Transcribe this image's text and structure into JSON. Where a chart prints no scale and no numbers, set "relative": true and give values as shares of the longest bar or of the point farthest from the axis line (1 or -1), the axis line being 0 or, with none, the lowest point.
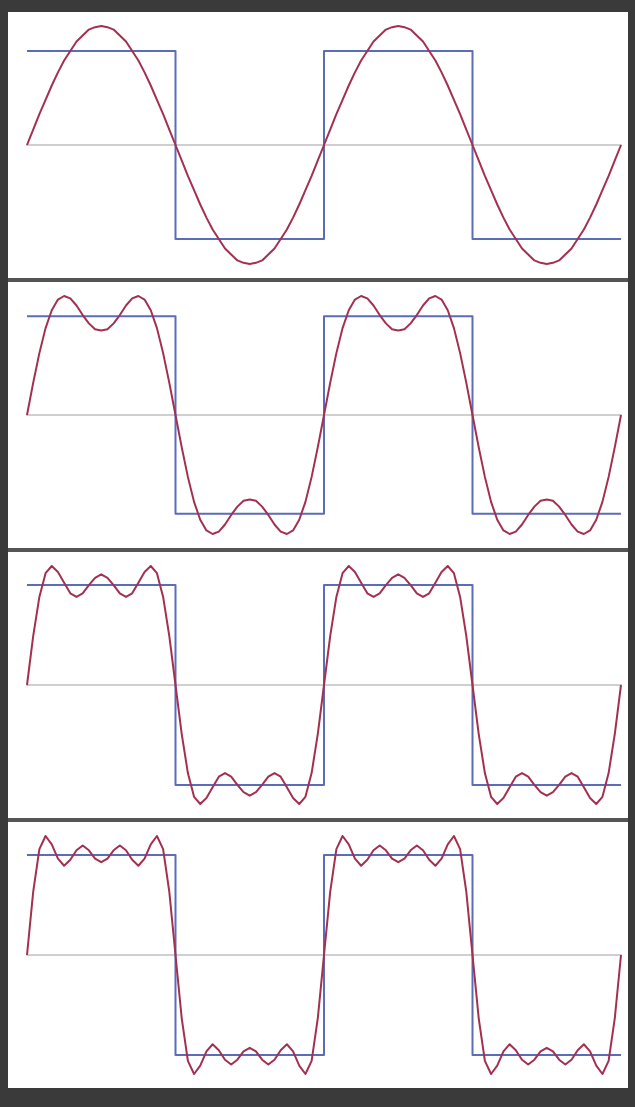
{
  "chart_data": [
    {
      "type": "line",
      "relative": true,
      "categories": [
        null,
        null,
        null,
        null,
        null,
        null,
        null,
        null,
        null,
        null,
        null,
        null,
        null,
        null,
        null,
        null,
        null,
        null,
        null,
        null,
        null,
        null,
        null,
        null,
        null,
        null,
        null,
        null,
        null,
        null,
        null,
        null,
        null,
        null,
        null,
        null,
        null,
        null,
        null,
        null,
        null,
        null,
        null,
        null,
        null,
        null,
        null,
        null,
        null,
        null,
        null,
        null,
        null,
        null,
        null,
        null,
        null,
        null,
        null,
        null,
        null,
        null,
        null,
        null,
        null,
        null,
        null,
        null,
        null,
        null,
        null,
        null,
        null,
        null,
        null,
        null,
        null,
        null,
        null,
        null,
        null,
        null,
        null,
        null,
        null,
        null,
        null,
        null,
        null,
        null,
        null,
        null,
        null,
        null,
        null,
        null,
        null
      ],
      "series": [
        {
          "type": "step",
          "color": "#5b6cb8",
          "values": [
            0.79,
            0.79,
            0.79,
            0.79,
            0.79,
            0.79,
            0.79,
            0.79,
            0.79,
            0.79,
            0.79,
            0.79,
            0.79,
            0.79,
            0.79,
            0.79,
            0.79,
            0.79,
            0.79,
            0.79,
            0.79,
            0.79,
            0.79,
            0.79,
            -0.79,
            -0.79,
            -0.79,
            -0.79,
            -0.79,
            -0.79,
            -0.79,
            -0.79,
            -0.79,
            -0.79,
            -0.79,
            -0.79,
            -0.79,
            -0.79,
            -0.79,
            -0.79,
            -0.79,
            -0.79,
            -0.79,
            -0.79,
            -0.79,
            -0.79,
            -0.79,
            -0.79,
            0.79,
            0.79,
            0.79,
            0.79,
            0.79,
            0.79,
            0.79,
            0.79,
            0.79,
            0.79,
            0.79,
            0.79,
            0.79,
            0.79,
            0.79,
            0.79,
            0.79,
            0.79,
            0.79,
            0.79,
            0.79,
            0.79,
            0.79,
            0.79,
            -0.79,
            -0.79,
            -0.79,
            -0.79,
            -0.79,
            -0.79,
            -0.79,
            -0.79,
            -0.79,
            -0.79,
            -0.79,
            -0.79,
            -0.79,
            -0.79,
            -0.79,
            -0.79,
            -0.79,
            -0.79,
            -0.79,
            -0.79,
            -0.79,
            -0.79,
            -0.79,
            -0.79,
            -0.79
          ]
        },
        {
          "type": "line",
          "color": "#a3304f",
          "values": [
            0,
            0.13,
            0.26,
            0.38,
            0.5,
            0.61,
            0.71,
            0.79,
            0.87,
            0.92,
            0.97,
            0.99,
            1,
            0.99,
            0.97,
            0.92,
            0.87,
            0.79,
            0.71,
            0.61,
            0.5,
            0.38,
            0.26,
            0.13,
            0,
            -0.13,
            -0.26,
            -0.38,
            -0.5,
            -0.61,
            -0.71,
            -0.79,
            -0.87,
            -0.92,
            -0.97,
            -0.99,
            -1,
            -0.99,
            -0.97,
            -0.92,
            -0.87,
            -0.79,
            -0.71,
            -0.61,
            -0.5,
            -0.38,
            -0.26,
            -0.13,
            0,
            0.13,
            0.26,
            0.38,
            0.5,
            0.61,
            0.71,
            0.79,
            0.87,
            0.92,
            0.97,
            0.99,
            1,
            0.99,
            0.97,
            0.92,
            0.87,
            0.79,
            0.71,
            0.61,
            0.5,
            0.38,
            0.26,
            0.13,
            0,
            -0.13,
            -0.26,
            -0.38,
            -0.5,
            -0.61,
            -0.71,
            -0.79,
            -0.87,
            -0.92,
            -0.97,
            -0.99,
            -1,
            -0.99,
            -0.97,
            -0.92,
            -0.87,
            -0.79,
            -0.71,
            -0.61,
            -0.5,
            -0.38,
            -0.26,
            -0.13,
            0
          ]
        }
      ]
    },
    {
      "type": "line",
      "relative": true,
      "categories": [
        null,
        null,
        null,
        null,
        null,
        null,
        null,
        null,
        null,
        null,
        null,
        null,
        null,
        null,
        null,
        null,
        null,
        null,
        null,
        null,
        null,
        null,
        null,
        null,
        null,
        null,
        null,
        null,
        null,
        null,
        null,
        null,
        null,
        null,
        null,
        null,
        null,
        null,
        null,
        null,
        null,
        null,
        null,
        null,
        null,
        null,
        null,
        null,
        null,
        null,
        null,
        null,
        null,
        null,
        null,
        null,
        null,
        null,
        null,
        null,
        null,
        null,
        null,
        null,
        null,
        null,
        null,
        null,
        null,
        null,
        null,
        null,
        null,
        null,
        null,
        null,
        null,
        null,
        null,
        null,
        null,
        null,
        null,
        null,
        null,
        null,
        null,
        null,
        null,
        null,
        null,
        null,
        null,
        null,
        null,
        null,
        null
      ],
      "series": [
        {
          "type": "step",
          "color": "#5b6cb8",
          "values": [
            0.83,
            0.83,
            0.83,
            0.83,
            0.83,
            0.83,
            0.83,
            0.83,
            0.83,
            0.83,
            0.83,
            0.83,
            0.83,
            0.83,
            0.83,
            0.83,
            0.83,
            0.83,
            0.83,
            0.83,
            0.83,
            0.83,
            0.83,
            0.83,
            -0.83,
            -0.83,
            -0.83,
            -0.83,
            -0.83,
            -0.83,
            -0.83,
            -0.83,
            -0.83,
            -0.83,
            -0.83,
            -0.83,
            -0.83,
            -0.83,
            -0.83,
            -0.83,
            -0.83,
            -0.83,
            -0.83,
            -0.83,
            -0.83,
            -0.83,
            -0.83,
            -0.83,
            0.83,
            0.83,
            0.83,
            0.83,
            0.83,
            0.83,
            0.83,
            0.83,
            0.83,
            0.83,
            0.83,
            0.83,
            0.83,
            0.83,
            0.83,
            0.83,
            0.83,
            0.83,
            0.83,
            0.83,
            0.83,
            0.83,
            0.83,
            0.83,
            -0.83,
            -0.83,
            -0.83,
            -0.83,
            -0.83,
            -0.83,
            -0.83,
            -0.83,
            -0.83,
            -0.83,
            -0.83,
            -0.83,
            -0.83,
            -0.83,
            -0.83,
            -0.83,
            -0.83,
            -0.83,
            -0.83,
            -0.83,
            -0.83,
            -0.83,
            -0.83,
            -0.83,
            -0.83
          ]
        },
        {
          "type": "line",
          "color": "#a3304f",
          "values": [
            0,
            0.27,
            0.52,
            0.73,
            0.88,
            0.97,
            1,
            0.98,
            0.92,
            0.84,
            0.77,
            0.72,
            0.71,
            0.72,
            0.77,
            0.84,
            0.92,
            0.98,
            1,
            0.97,
            0.88,
            0.73,
            0.52,
            0.27,
            0,
            -0.27,
            -0.52,
            -0.73,
            -0.88,
            -0.97,
            -1,
            -0.98,
            -0.92,
            -0.84,
            -0.77,
            -0.72,
            -0.71,
            -0.72,
            -0.77,
            -0.84,
            -0.92,
            -0.98,
            -1,
            -0.97,
            -0.88,
            -0.73,
            -0.52,
            -0.27,
            0,
            0.27,
            0.52,
            0.73,
            0.88,
            0.97,
            1,
            0.98,
            0.92,
            0.84,
            0.77,
            0.72,
            0.71,
            0.72,
            0.77,
            0.84,
            0.92,
            0.98,
            1,
            0.97,
            0.88,
            0.73,
            0.52,
            0.27,
            0,
            -0.27,
            -0.52,
            -0.73,
            -0.88,
            -0.97,
            -1,
            -0.98,
            -0.92,
            -0.84,
            -0.77,
            -0.72,
            -0.71,
            -0.72,
            -0.77,
            -0.84,
            -0.92,
            -0.98,
            -1,
            -0.97,
            -0.88,
            -0.73,
            -0.52,
            -0.27,
            0
          ]
        }
      ]
    },
    {
      "type": "line",
      "relative": true,
      "categories": [
        null,
        null,
        null,
        null,
        null,
        null,
        null,
        null,
        null,
        null,
        null,
        null,
        null,
        null,
        null,
        null,
        null,
        null,
        null,
        null,
        null,
        null,
        null,
        null,
        null,
        null,
        null,
        null,
        null,
        null,
        null,
        null,
        null,
        null,
        null,
        null,
        null,
        null,
        null,
        null,
        null,
        null,
        null,
        null,
        null,
        null,
        null,
        null,
        null,
        null,
        null,
        null,
        null,
        null,
        null,
        null,
        null,
        null,
        null,
        null,
        null,
        null,
        null,
        null,
        null,
        null,
        null,
        null,
        null,
        null,
        null,
        null,
        null,
        null,
        null,
        null,
        null,
        null,
        null,
        null,
        null,
        null,
        null,
        null,
        null,
        null,
        null,
        null,
        null,
        null,
        null,
        null,
        null,
        null,
        null,
        null,
        null
      ],
      "series": [
        {
          "type": "step",
          "color": "#5b6cb8",
          "values": [
            0.84,
            0.84,
            0.84,
            0.84,
            0.84,
            0.84,
            0.84,
            0.84,
            0.84,
            0.84,
            0.84,
            0.84,
            0.84,
            0.84,
            0.84,
            0.84,
            0.84,
            0.84,
            0.84,
            0.84,
            0.84,
            0.84,
            0.84,
            0.84,
            -0.84,
            -0.84,
            -0.84,
            -0.84,
            -0.84,
            -0.84,
            -0.84,
            -0.84,
            -0.84,
            -0.84,
            -0.84,
            -0.84,
            -0.84,
            -0.84,
            -0.84,
            -0.84,
            -0.84,
            -0.84,
            -0.84,
            -0.84,
            -0.84,
            -0.84,
            -0.84,
            -0.84,
            0.84,
            0.84,
            0.84,
            0.84,
            0.84,
            0.84,
            0.84,
            0.84,
            0.84,
            0.84,
            0.84,
            0.84,
            0.84,
            0.84,
            0.84,
            0.84,
            0.84,
            0.84,
            0.84,
            0.84,
            0.84,
            0.84,
            0.84,
            0.84,
            -0.84,
            -0.84,
            -0.84,
            -0.84,
            -0.84,
            -0.84,
            -0.84,
            -0.84,
            -0.84,
            -0.84,
            -0.84,
            -0.84,
            -0.84,
            -0.84,
            -0.84,
            -0.84,
            -0.84,
            -0.84,
            -0.84,
            -0.84,
            -0.84,
            -0.84,
            -0.84,
            -0.84,
            -0.84
          ]
        },
        {
          "type": "line",
          "color": "#a3304f",
          "values": [
            0,
            0.41,
            0.74,
            0.94,
            1,
            0.95,
            0.86,
            0.77,
            0.74,
            0.77,
            0.84,
            0.9,
            0.93,
            0.9,
            0.84,
            0.77,
            0.74,
            0.77,
            0.86,
            0.95,
            1,
            0.94,
            0.74,
            0.41,
            0,
            -0.41,
            -0.74,
            -0.94,
            -1,
            -0.95,
            -0.86,
            -0.77,
            -0.74,
            -0.77,
            -0.84,
            -0.9,
            -0.93,
            -0.9,
            -0.84,
            -0.77,
            -0.74,
            -0.77,
            -0.86,
            -0.95,
            -1,
            -0.94,
            -0.74,
            -0.41,
            0,
            0.41,
            0.74,
            0.94,
            1,
            0.95,
            0.86,
            0.77,
            0.74,
            0.77,
            0.84,
            0.9,
            0.93,
            0.9,
            0.84,
            0.77,
            0.74,
            0.77,
            0.86,
            0.95,
            1,
            0.94,
            0.74,
            0.41,
            0,
            -0.41,
            -0.74,
            -0.94,
            -1,
            -0.95,
            -0.86,
            -0.77,
            -0.74,
            -0.77,
            -0.84,
            -0.9,
            -0.93,
            -0.9,
            -0.84,
            -0.77,
            -0.74,
            -0.77,
            -0.86,
            -0.95,
            -1,
            -0.94,
            -0.74,
            -0.41,
            0
          ]
        }
      ]
    },
    {
      "type": "line",
      "relative": true,
      "categories": [
        null,
        null,
        null,
        null,
        null,
        null,
        null,
        null,
        null,
        null,
        null,
        null,
        null,
        null,
        null,
        null,
        null,
        null,
        null,
        null,
        null,
        null,
        null,
        null,
        null,
        null,
        null,
        null,
        null,
        null,
        null,
        null,
        null,
        null,
        null,
        null,
        null,
        null,
        null,
        null,
        null,
        null,
        null,
        null,
        null,
        null,
        null,
        null,
        null,
        null,
        null,
        null,
        null,
        null,
        null,
        null,
        null,
        null,
        null,
        null,
        null,
        null,
        null,
        null,
        null,
        null,
        null,
        null,
        null,
        null,
        null,
        null,
        null,
        null,
        null,
        null,
        null,
        null,
        null,
        null,
        null,
        null,
        null,
        null,
        null,
        null,
        null,
        null,
        null,
        null,
        null,
        null,
        null,
        null,
        null,
        null,
        null
      ],
      "series": [
        {
          "type": "step",
          "color": "#5b6cb8",
          "values": [
            0.84,
            0.84,
            0.84,
            0.84,
            0.84,
            0.84,
            0.84,
            0.84,
            0.84,
            0.84,
            0.84,
            0.84,
            0.84,
            0.84,
            0.84,
            0.84,
            0.84,
            0.84,
            0.84,
            0.84,
            0.84,
            0.84,
            0.84,
            0.84,
            -0.84,
            -0.84,
            -0.84,
            -0.84,
            -0.84,
            -0.84,
            -0.84,
            -0.84,
            -0.84,
            -0.84,
            -0.84,
            -0.84,
            -0.84,
            -0.84,
            -0.84,
            -0.84,
            -0.84,
            -0.84,
            -0.84,
            -0.84,
            -0.84,
            -0.84,
            -0.84,
            -0.84,
            0.84,
            0.84,
            0.84,
            0.84,
            0.84,
            0.84,
            0.84,
            0.84,
            0.84,
            0.84,
            0.84,
            0.84,
            0.84,
            0.84,
            0.84,
            0.84,
            0.84,
            0.84,
            0.84,
            0.84,
            0.84,
            0.84,
            0.84,
            0.84,
            -0.84,
            -0.84,
            -0.84,
            -0.84,
            -0.84,
            -0.84,
            -0.84,
            -0.84,
            -0.84,
            -0.84,
            -0.84,
            -0.84,
            -0.84,
            -0.84,
            -0.84,
            -0.84,
            -0.84,
            -0.84,
            -0.84,
            -0.84,
            -0.84,
            -0.84,
            -0.84,
            -0.84,
            -0.84
          ]
        },
        {
          "type": "line",
          "color": "#a3304f",
          "values": [
            0,
            0.53,
            0.89,
            1,
            0.93,
            0.81,
            0.75,
            0.8,
            0.88,
            0.92,
            0.88,
            0.81,
            0.78,
            0.81,
            0.88,
            0.92,
            0.88,
            0.8,
            0.75,
            0.81,
            0.93,
            1,
            0.89,
            0.53,
            0,
            -0.53,
            -0.89,
            -1,
            -0.93,
            -0.81,
            -0.75,
            -0.8,
            -0.88,
            -0.92,
            -0.88,
            -0.81,
            -0.78,
            -0.81,
            -0.88,
            -0.92,
            -0.88,
            -0.8,
            -0.75,
            -0.81,
            -0.93,
            -1,
            -0.89,
            -0.53,
            0,
            0.53,
            0.89,
            1,
            0.93,
            0.81,
            0.75,
            0.8,
            0.88,
            0.92,
            0.88,
            0.81,
            0.78,
            0.81,
            0.88,
            0.92,
            0.88,
            0.8,
            0.75,
            0.81,
            0.93,
            1,
            0.89,
            0.53,
            0,
            -0.53,
            -0.89,
            -1,
            -0.93,
            -0.81,
            -0.75,
            -0.8,
            -0.88,
            -0.92,
            -0.88,
            -0.81,
            -0.78,
            -0.81,
            -0.88,
            -0.92,
            -0.88,
            -0.8,
            -0.75,
            -0.81,
            -0.93,
            -1,
            -0.89,
            -0.53,
            0
          ]
        }
      ]
    }
  ]
}
